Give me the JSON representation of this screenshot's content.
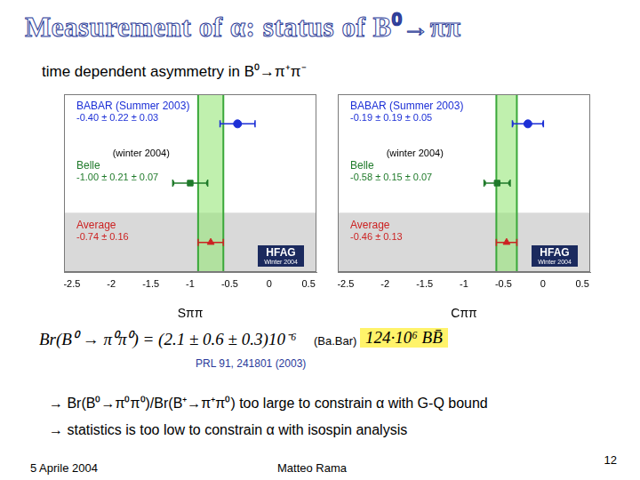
{
  "slide": {
    "title": "Measurement of α: status of B⁰→ππ",
    "subtitle": "time dependent asymmetry in B⁰→π⁺π⁻",
    "formula": "Br(B⁰ → π⁰π⁰) = (2.1 ± 0.6 ± 0.3)10⁻⁶",
    "experiment": "(Ba.Bar)",
    "sample": "124·10⁶ BB̄",
    "reference": "PRL 91, 241801 (2003)",
    "bullets": [
      "→ Br(B⁰→π⁰π⁰)/Br(B⁺→π⁺π⁰) too large to constrain α with G-Q bound",
      "→ statistics is too low to constrain α with isospin analysis"
    ],
    "footer": {
      "date": "5 Aprile 2004",
      "author": "Matteo Rama",
      "page": "12"
    }
  },
  "chart_data": [
    {
      "type": "scatter",
      "x_label": "Sππ",
      "xlim": [
        -2.6,
        0.6
      ],
      "xticks": [
        -2.5,
        -2,
        -1.5,
        -1,
        -0.5,
        0,
        0.5
      ],
      "grid": false,
      "tick_labels": "x",
      "annotations": [
        "HFAG",
        "Winter 2004"
      ],
      "series": [
        {
          "name": "BABAR (Summer 2003)",
          "color": "#1c2fd6",
          "marker": "circle",
          "values": [
            -0.4
          ],
          "errors": [
            0.22,
            0.03
          ],
          "value_label": "-0.40 ± 0.22 ± 0.03"
        },
        {
          "name": "Belle",
          "note": "(winter 2004)",
          "color": "#1f7a2a",
          "marker": "square",
          "values": [
            -1.0
          ],
          "errors": [
            0.21,
            0.07
          ],
          "value_label": "-1.00 ± 0.21 ± 0.07"
        },
        {
          "name": "Average",
          "color": "#cc2222",
          "marker": "triangle",
          "values": [
            -0.74
          ],
          "errors": [
            0.16
          ],
          "value_label": "-0.74 ± 0.16"
        }
      ]
    },
    {
      "type": "scatter",
      "x_label": "Cππ",
      "xlim": [
        -2.6,
        0.6
      ],
      "xticks": [
        -2.5,
        -2,
        -1.5,
        -1,
        -0.5,
        0,
        0.5
      ],
      "grid": false,
      "tick_labels": "x",
      "annotations": [
        "HFAG",
        "Winter 2004"
      ],
      "series": [
        {
          "name": "BABAR (Summer 2003)",
          "color": "#1c2fd6",
          "marker": "circle",
          "values": [
            -0.19
          ],
          "errors": [
            0.19,
            0.05
          ],
          "value_label": "-0.19 ± 0.19 ± 0.05"
        },
        {
          "name": "Belle",
          "note": "(winter 2004)",
          "color": "#1f7a2a",
          "marker": "square",
          "values": [
            -0.58
          ],
          "errors": [
            0.15,
            0.07
          ],
          "value_label": "-0.58 ± 0.15 ± 0.07"
        },
        {
          "name": "Average",
          "color": "#cc2222",
          "marker": "triangle",
          "values": [
            -0.46
          ],
          "errors": [
            0.13
          ],
          "value_label": "-0.46 ± 0.13"
        }
      ]
    }
  ]
}
